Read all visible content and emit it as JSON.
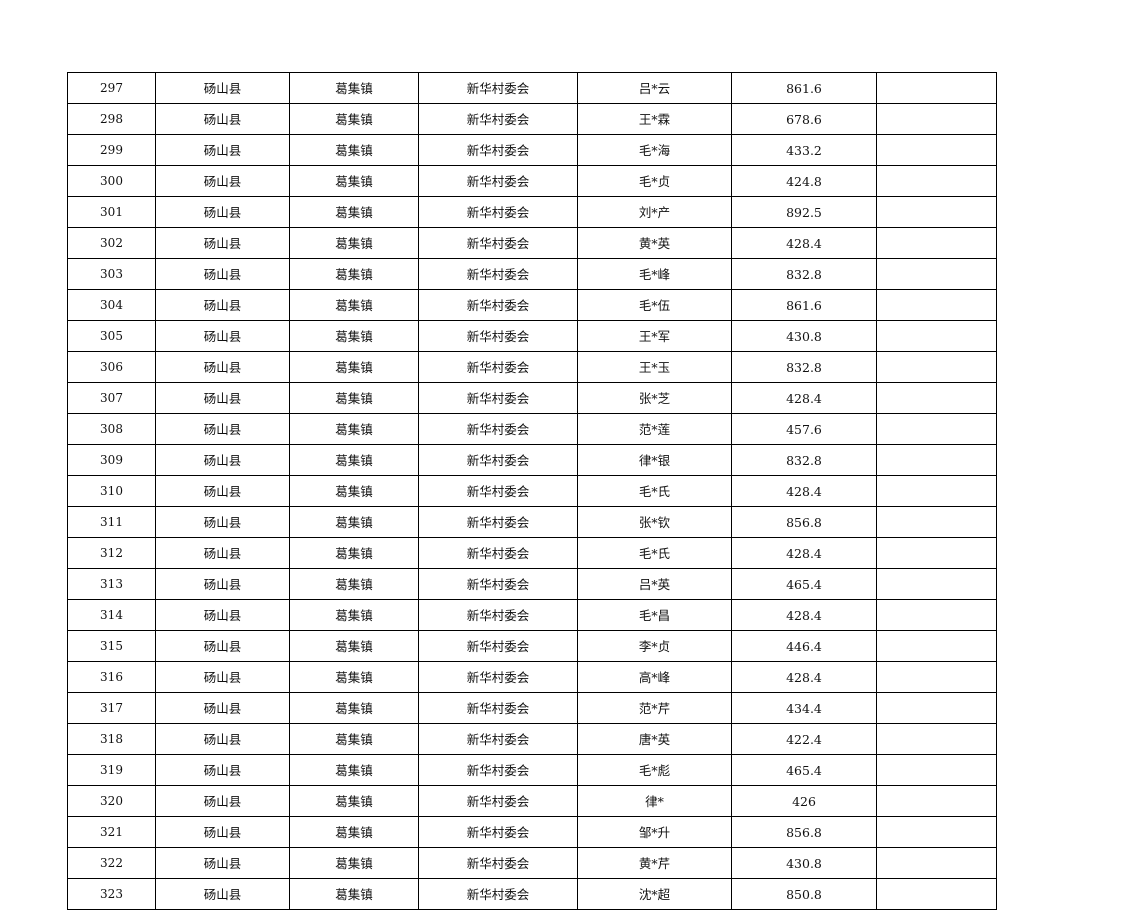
{
  "table": {
    "rows": [
      [
        "297",
        "砀山县",
        "葛集镇",
        "新华村委会",
        "吕*云",
        "861.6",
        ""
      ],
      [
        "298",
        "砀山县",
        "葛集镇",
        "新华村委会",
        "王*霖",
        "678.6",
        ""
      ],
      [
        "299",
        "砀山县",
        "葛集镇",
        "新华村委会",
        "毛*海",
        "433.2",
        ""
      ],
      [
        "300",
        "砀山县",
        "葛集镇",
        "新华村委会",
        "毛*贞",
        "424.8",
        ""
      ],
      [
        "301",
        "砀山县",
        "葛集镇",
        "新华村委会",
        "刘*产",
        "892.5",
        ""
      ],
      [
        "302",
        "砀山县",
        "葛集镇",
        "新华村委会",
        "黄*英",
        "428.4",
        ""
      ],
      [
        "303",
        "砀山县",
        "葛集镇",
        "新华村委会",
        "毛*峰",
        "832.8",
        ""
      ],
      [
        "304",
        "砀山县",
        "葛集镇",
        "新华村委会",
        "毛*伍",
        "861.6",
        ""
      ],
      [
        "305",
        "砀山县",
        "葛集镇",
        "新华村委会",
        "王*军",
        "430.8",
        ""
      ],
      [
        "306",
        "砀山县",
        "葛集镇",
        "新华村委会",
        "王*玉",
        "832.8",
        ""
      ],
      [
        "307",
        "砀山县",
        "葛集镇",
        "新华村委会",
        "张*芝",
        "428.4",
        ""
      ],
      [
        "308",
        "砀山县",
        "葛集镇",
        "新华村委会",
        "范*莲",
        "457.6",
        ""
      ],
      [
        "309",
        "砀山县",
        "葛集镇",
        "新华村委会",
        "律*银",
        "832.8",
        ""
      ],
      [
        "310",
        "砀山县",
        "葛集镇",
        "新华村委会",
        "毛*氏",
        "428.4",
        ""
      ],
      [
        "311",
        "砀山县",
        "葛集镇",
        "新华村委会",
        "张*钦",
        "856.8",
        ""
      ],
      [
        "312",
        "砀山县",
        "葛集镇",
        "新华村委会",
        "毛*氏",
        "428.4",
        ""
      ],
      [
        "313",
        "砀山县",
        "葛集镇",
        "新华村委会",
        "吕*英",
        "465.4",
        ""
      ],
      [
        "314",
        "砀山县",
        "葛集镇",
        "新华村委会",
        "毛*昌",
        "428.4",
        ""
      ],
      [
        "315",
        "砀山县",
        "葛集镇",
        "新华村委会",
        "李*贞",
        "446.4",
        ""
      ],
      [
        "316",
        "砀山县",
        "葛集镇",
        "新华村委会",
        "高*峰",
        "428.4",
        ""
      ],
      [
        "317",
        "砀山县",
        "葛集镇",
        "新华村委会",
        "范*芹",
        "434.4",
        ""
      ],
      [
        "318",
        "砀山县",
        "葛集镇",
        "新华村委会",
        "唐*英",
        "422.4",
        ""
      ],
      [
        "319",
        "砀山县",
        "葛集镇",
        "新华村委会",
        "毛*彪",
        "465.4",
        ""
      ],
      [
        "320",
        "砀山县",
        "葛集镇",
        "新华村委会",
        "律*",
        "426",
        ""
      ],
      [
        "321",
        "砀山县",
        "葛集镇",
        "新华村委会",
        "邹*升",
        "856.8",
        ""
      ],
      [
        "322",
        "砀山县",
        "葛集镇",
        "新华村委会",
        "黄*芹",
        "430.8",
        ""
      ],
      [
        "323",
        "砀山县",
        "葛集镇",
        "新华村委会",
        "沈*超",
        "850.8",
        ""
      ]
    ]
  }
}
